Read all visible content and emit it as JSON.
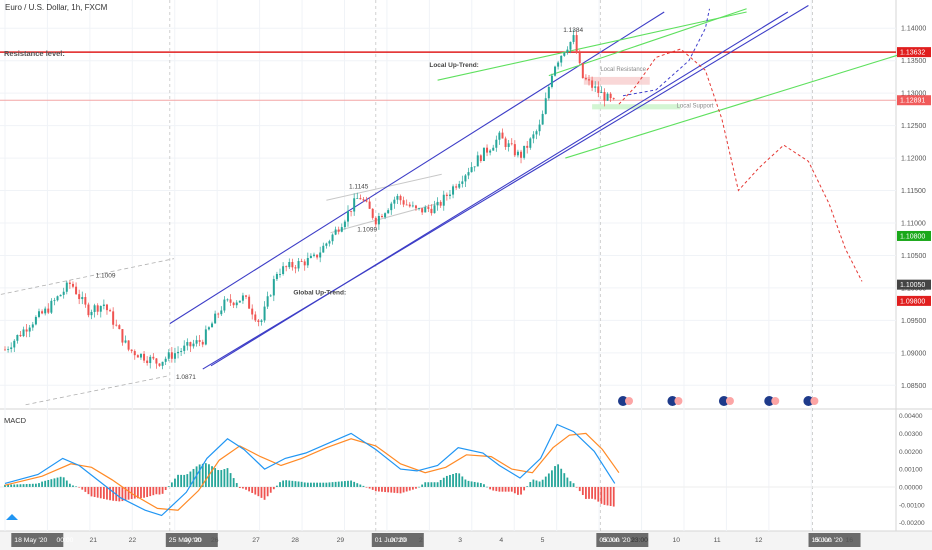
{
  "header": {
    "title": "Euro / U.S. Dollar, 1h, FXCM"
  },
  "colors": {
    "bull": "#26a69a",
    "bear": "#ef5350",
    "channel": "#3d3dc7",
    "trend": "#5ee05e",
    "resistance": "#e01e1e",
    "support_line": "#f3a5a5",
    "projection": "#e53935",
    "projection_up": "#3f3fcc",
    "macd": "#2196f3",
    "signal": "#ff8a26",
    "hist_up": "#26a69a",
    "hist_down": "#ef5350",
    "axis_text": "#555555"
  },
  "chart_data": [
    {
      "type": "candlestick",
      "title": "Euro / U.S. Dollar, 1h, FXCM",
      "ylim": [
        1.0815,
        1.1425
      ],
      "y_ticks": [
        "1.14000",
        "1.13500",
        "1.13000",
        "1.12500",
        "1.12000",
        "1.11500",
        "1.11000",
        "1.10500",
        "1.10000",
        "1.09500",
        "1.09000",
        "1.08500"
      ],
      "x_ticks": [
        "18 May '20",
        "21",
        "22",
        "25 May '20",
        "26",
        "27",
        "28",
        "29",
        "01 Jun '20",
        "2",
        "3",
        "4",
        "5",
        "05 Jun '20",
        "9",
        "10",
        "11",
        "12",
        "15 Jun '20",
        "16"
      ],
      "time_labels": [
        "00:00",
        "00:00",
        "00:00",
        "00:00",
        "23:00",
        "00:00"
      ],
      "price_badges": [
        {
          "label": "1.13632",
          "kind": "resistance"
        },
        {
          "label": "1.12891",
          "kind": "support"
        },
        {
          "label": "1.10800",
          "kind": "green"
        },
        {
          "label": "1.10050",
          "kind": "last"
        },
        {
          "label": "1.09800",
          "kind": "red"
        }
      ],
      "annotations": [
        "Resistance level:",
        "Local Up-Trend:",
        "Local Resistance",
        "Local Support",
        "Global Up-Trend:"
      ],
      "price_labels": [
        "1.1384",
        "1.1145",
        "1.1099",
        "1.1009",
        "1.0871"
      ],
      "anchor_points": [
        {
          "day": 0.0,
          "price": 1.0905
        },
        {
          "day": 0.6,
          "price": 1.0945
        },
        {
          "day": 1.0,
          "price": 1.0965
        },
        {
          "day": 1.6,
          "price": 1.1008
        },
        {
          "day": 2.0,
          "price": 1.0965
        },
        {
          "day": 2.4,
          "price": 1.0975
        },
        {
          "day": 3.0,
          "price": 1.0905
        },
        {
          "day": 3.7,
          "price": 1.0885
        },
        {
          "day": 4.2,
          "price": 1.0902
        },
        {
          "day": 4.8,
          "price": 1.092
        },
        {
          "day": 5.3,
          "price": 1.0975
        },
        {
          "day": 5.8,
          "price": 1.0985
        },
        {
          "day": 6.2,
          "price": 1.0945
        },
        {
          "day": 6.6,
          "price": 1.1025
        },
        {
          "day": 7.0,
          "price": 1.1035
        },
        {
          "day": 7.5,
          "price": 1.1045
        },
        {
          "day": 8.0,
          "price": 1.1085
        },
        {
          "day": 8.6,
          "price": 1.1142
        },
        {
          "day": 9.0,
          "price": 1.1105
        },
        {
          "day": 9.5,
          "price": 1.114
        },
        {
          "day": 10.0,
          "price": 1.1118
        },
        {
          "day": 10.5,
          "price": 1.1125
        },
        {
          "day": 11.0,
          "price": 1.1165
        },
        {
          "day": 11.5,
          "price": 1.12
        },
        {
          "day": 12.0,
          "price": 1.1232
        },
        {
          "day": 12.5,
          "price": 1.1202
        },
        {
          "day": 13.0,
          "price": 1.125
        },
        {
          "day": 13.3,
          "price": 1.134
        },
        {
          "day": 13.6,
          "price": 1.137
        },
        {
          "day": 13.8,
          "price": 1.1384
        },
        {
          "day": 14.0,
          "price": 1.1325
        },
        {
          "day": 14.4,
          "price": 1.1302
        },
        {
          "day": 14.8,
          "price": 1.1283
        }
      ],
      "projection": {
        "name": "projection",
        "points": [
          {
            "day": 14.9,
            "price": 1.1283
          },
          {
            "day": 15.3,
            "price": 1.131
          },
          {
            "day": 15.8,
            "price": 1.1355
          },
          {
            "day": 16.4,
            "price": 1.1368
          },
          {
            "day": 17.0,
            "price": 1.1335
          },
          {
            "day": 17.4,
            "price": 1.126
          },
          {
            "day": 17.8,
            "price": 1.115
          },
          {
            "day": 18.3,
            "price": 1.1185
          },
          {
            "day": 18.9,
            "price": 1.122
          },
          {
            "day": 19.5,
            "price": 1.1195
          },
          {
            "day": 20.0,
            "price": 1.113
          },
          {
            "day": 20.4,
            "price": 1.106
          },
          {
            "day": 20.8,
            "price": 1.101
          }
        ]
      },
      "projection_up": {
        "points": [
          {
            "day": 15.0,
            "price": 1.1296
          },
          {
            "day": 15.8,
            "price": 1.1305
          },
          {
            "day": 16.6,
            "price": 1.135
          },
          {
            "day": 17.0,
            "price": 1.14
          },
          {
            "day": 17.1,
            "price": 1.143
          }
        ]
      },
      "channel_lines": [
        {
          "from": {
            "day": 4.0,
            "price": 1.0945
          },
          "to": {
            "day": 16.0,
            "price": 1.1425
          }
        },
        {
          "from": {
            "day": 4.8,
            "price": 1.0875
          },
          "to": {
            "day": 19.5,
            "price": 1.1435
          }
        },
        {
          "from": {
            "day": 5.0,
            "price": 1.088
          },
          "to": {
            "day": 19.0,
            "price": 1.1425
          }
        }
      ],
      "trend_lines": [
        {
          "from": {
            "day": 13.2,
            "price": 1.1327
          },
          "to": {
            "day": 18.0,
            "price": 1.143
          }
        },
        {
          "from": {
            "day": 13.6,
            "price": 1.12
          },
          "to": {
            "day": 22.0,
            "price": 1.1365
          }
        },
        {
          "from": {
            "day": 10.5,
            "price": 1.132
          },
          "to": {
            "day": 18.0,
            "price": 1.1425
          }
        }
      ],
      "resistance": 1.13632,
      "support": 1.12891
    },
    {
      "type": "line",
      "title": "MACD",
      "ylim": [
        -0.0023,
        0.0042
      ],
      "y_ticks": [
        "0.00400",
        "0.00300",
        "0.00200",
        "0.00100",
        "0.00000",
        "-0.00100",
        "-0.00200"
      ],
      "series": [
        {
          "key": "macd",
          "values": [
            {
              "day": 0.0,
              "value": 0.0002
            },
            {
              "day": 0.8,
              "value": 0.0007
            },
            {
              "day": 1.4,
              "value": 0.0016
            },
            {
              "day": 1.8,
              "value": 0.0012
            },
            {
              "day": 2.3,
              "value": 0.0003
            },
            {
              "day": 2.8,
              "value": -0.0006
            },
            {
              "day": 3.4,
              "value": -0.0013
            },
            {
              "day": 3.8,
              "value": -0.0016
            },
            {
              "day": 4.4,
              "value": -0.0003
            },
            {
              "day": 4.9,
              "value": 0.0016
            },
            {
              "day": 5.4,
              "value": 0.0027
            },
            {
              "day": 5.8,
              "value": 0.0021
            },
            {
              "day": 6.3,
              "value": 0.001
            },
            {
              "day": 6.8,
              "value": 0.0016
            },
            {
              "day": 7.3,
              "value": 0.0019
            },
            {
              "day": 7.9,
              "value": 0.0025
            },
            {
              "day": 8.4,
              "value": 0.003
            },
            {
              "day": 9.0,
              "value": 0.0021
            },
            {
              "day": 9.6,
              "value": 0.001
            },
            {
              "day": 10.0,
              "value": 0.0009
            },
            {
              "day": 10.5,
              "value": 0.0012
            },
            {
              "day": 11.0,
              "value": 0.0022
            },
            {
              "day": 11.6,
              "value": 0.0019
            },
            {
              "day": 12.0,
              "value": 0.0012
            },
            {
              "day": 12.5,
              "value": 0.0005
            },
            {
              "day": 13.0,
              "value": 0.0016
            },
            {
              "day": 13.4,
              "value": 0.0035
            },
            {
              "day": 13.8,
              "value": 0.0031
            },
            {
              "day": 14.3,
              "value": 0.002
            },
            {
              "day": 14.8,
              "value": 0.0002
            }
          ]
        },
        {
          "key": "signal",
          "values": [
            {
              "day": 0.0,
              "value": 0.0001
            },
            {
              "day": 0.9,
              "value": 0.0006
            },
            {
              "day": 1.6,
              "value": 0.0013
            },
            {
              "day": 2.1,
              "value": 0.0011
            },
            {
              "day": 2.6,
              "value": 0.0004
            },
            {
              "day": 3.1,
              "value": -0.0004
            },
            {
              "day": 3.7,
              "value": -0.0012
            },
            {
              "day": 4.2,
              "value": -0.0013
            },
            {
              "day": 4.7,
              "value": -0.0002
            },
            {
              "day": 5.2,
              "value": 0.0015
            },
            {
              "day": 5.7,
              "value": 0.0023
            },
            {
              "day": 6.2,
              "value": 0.0017
            },
            {
              "day": 6.7,
              "value": 0.0012
            },
            {
              "day": 7.2,
              "value": 0.0016
            },
            {
              "day": 7.8,
              "value": 0.0022
            },
            {
              "day": 8.4,
              "value": 0.0027
            },
            {
              "day": 9.0,
              "value": 0.0023
            },
            {
              "day": 9.6,
              "value": 0.0013
            },
            {
              "day": 10.2,
              "value": 0.0008
            },
            {
              "day": 10.7,
              "value": 0.0011
            },
            {
              "day": 11.2,
              "value": 0.0018
            },
            {
              "day": 11.8,
              "value": 0.0017
            },
            {
              "day": 12.3,
              "value": 0.001
            },
            {
              "day": 12.8,
              "value": 0.0008
            },
            {
              "day": 13.3,
              "value": 0.0022
            },
            {
              "day": 13.7,
              "value": 0.0029
            },
            {
              "day": 14.1,
              "value": 0.003
            },
            {
              "day": 14.5,
              "value": 0.0021
            },
            {
              "day": 14.9,
              "value": 0.0008
            }
          ]
        }
      ]
    }
  ]
}
